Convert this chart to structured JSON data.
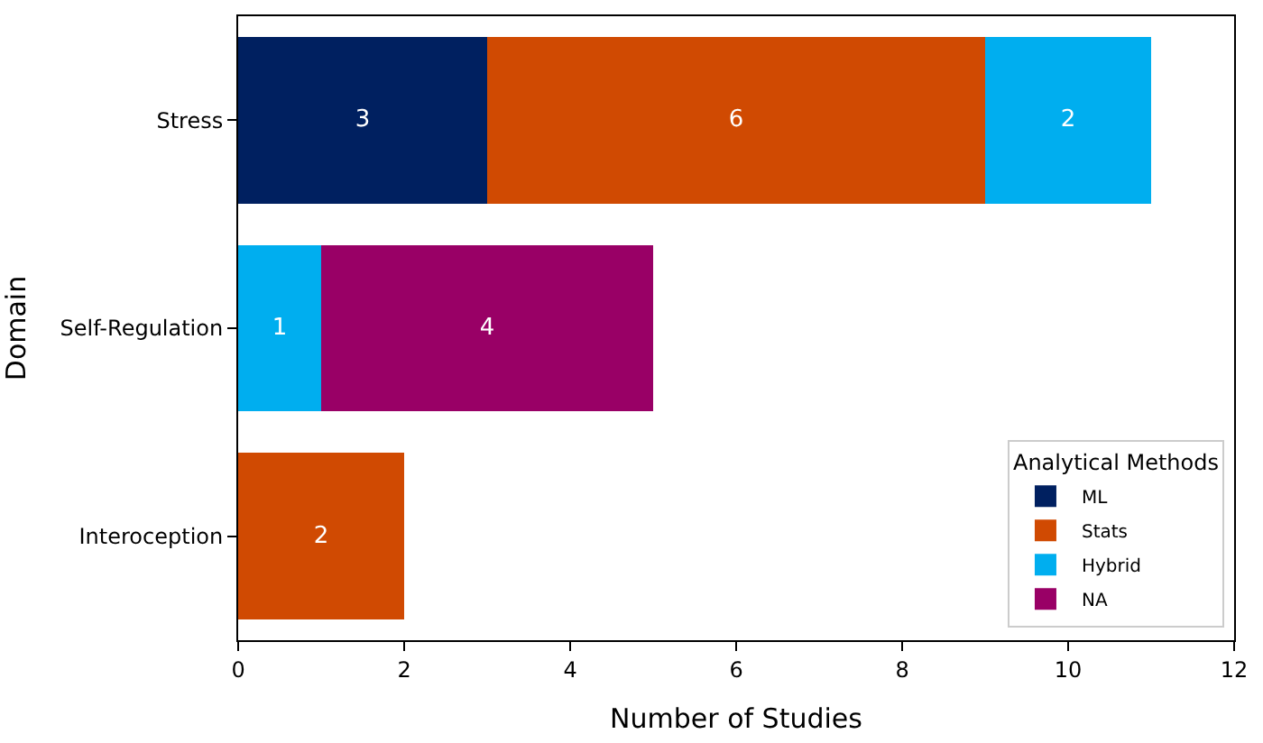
{
  "chart_data": {
    "type": "bar",
    "orientation": "horizontal",
    "stacked": true,
    "xlabel": "Number of Studies",
    "ylabel": "Domain",
    "legend_title": "Analytical Methods",
    "legend": "bottom right",
    "data_labels": true,
    "categories": [
      "Stress",
      "Self-Regulation",
      "Interoception"
    ],
    "xlim": [
      0,
      12
    ],
    "xticks": [
      0,
      2,
      4,
      6,
      8,
      10,
      12
    ],
    "series": [
      {
        "name": "ML",
        "color": "#002060",
        "values": [
          3,
          null,
          null
        ]
      },
      {
        "name": "Stats",
        "color": "#d04a02",
        "values": [
          6,
          null,
          2
        ]
      },
      {
        "name": "Hybrid",
        "color": "#00aeef",
        "values": [
          2,
          1,
          null
        ]
      },
      {
        "name": "NA",
        "color": "#990066",
        "values": [
          null,
          4,
          null
        ]
      }
    ]
  }
}
